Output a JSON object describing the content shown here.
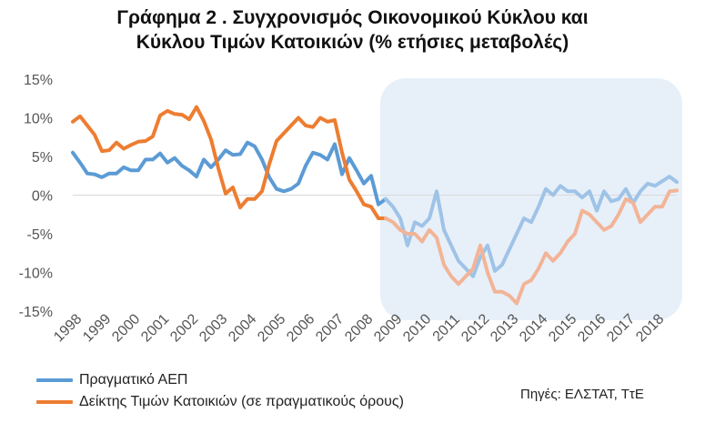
{
  "title_line1": "Γράφημα 2 . Συγχρονισμός Οικονομικού Κύκλου και",
  "title_line2": "Κύκλου Τιμών Κατοικιών (% ετήσιες μεταβολές)",
  "source": "Πηγές: ΕΛΣΤΑΤ, ΤτΕ",
  "colors": {
    "gdp": "#5b9bd5",
    "gdp_light": "#9fc3e7",
    "housing": "#ed7d31",
    "housing_light": "#f2b497",
    "highlight": "#e7f0f9"
  },
  "chart_data": {
    "type": "line",
    "title": "Γράφημα 2 . Συγχρονισμός Οικονομικού Κύκλου και Κύκλου Τιμών Κατοικιών (% ετήσιες μεταβολές)",
    "xlabel": "",
    "ylabel": "",
    "ylim": [
      -15,
      15
    ],
    "y_ticks": [
      "15%",
      "10%",
      "5%",
      "0%",
      "-5%",
      "-10%",
      "-15%"
    ],
    "y_tick_values": [
      15,
      10,
      5,
      0,
      -5,
      -10,
      -15
    ],
    "x_ticks": [
      "1998",
      "1999",
      "2000",
      "2001",
      "2002",
      "2003",
      "2004",
      "2005",
      "2006",
      "2007",
      "2008",
      "2009",
      "2010",
      "2011",
      "2012",
      "2013",
      "2014",
      "2015",
      "2016",
      "2017",
      "2018"
    ],
    "x_range": [
      1998.0,
      2018.75
    ],
    "highlight_period": {
      "from": 2008.75,
      "to": 2018.75
    },
    "grid": false,
    "legend_position": "bottom-left",
    "series": [
      {
        "name": "Πραγματικό ΑΕΠ",
        "color": "#5b9bd5",
        "light_after": 2008.75,
        "x": [
          1998.0,
          1998.25,
          1998.5,
          1998.75,
          1999.0,
          1999.25,
          1999.5,
          1999.75,
          2000.0,
          2000.25,
          2000.5,
          2000.75,
          2001.0,
          2001.25,
          2001.5,
          2001.75,
          2002.0,
          2002.25,
          2002.5,
          2002.75,
          2003.0,
          2003.25,
          2003.5,
          2003.75,
          2004.0,
          2004.25,
          2004.5,
          2004.75,
          2005.0,
          2005.25,
          2005.5,
          2005.75,
          2006.0,
          2006.25,
          2006.5,
          2006.75,
          2007.0,
          2007.25,
          2007.5,
          2007.75,
          2008.0,
          2008.25,
          2008.5,
          2008.75,
          2009.0,
          2009.25,
          2009.5,
          2009.75,
          2010.0,
          2010.25,
          2010.5,
          2010.75,
          2011.0,
          2011.25,
          2011.5,
          2011.75,
          2012.0,
          2012.25,
          2012.5,
          2012.75,
          2013.0,
          2013.25,
          2013.5,
          2013.75,
          2014.0,
          2014.25,
          2014.5,
          2014.75,
          2015.0,
          2015.25,
          2015.5,
          2015.75,
          2016.0,
          2016.25,
          2016.5,
          2016.75,
          2017.0,
          2017.25,
          2017.5,
          2017.75,
          2018.0,
          2018.25,
          2018.5,
          2018.75
        ],
        "values": [
          5.5,
          4.2,
          2.8,
          2.7,
          2.3,
          2.8,
          2.8,
          3.6,
          3.2,
          3.2,
          4.6,
          4.6,
          5.4,
          4.2,
          4.8,
          3.8,
          3.2,
          2.4,
          4.6,
          3.6,
          4.6,
          5.8,
          5.2,
          5.3,
          6.8,
          6.3,
          4.6,
          2.3,
          0.8,
          0.5,
          0.8,
          1.5,
          3.8,
          5.5,
          5.2,
          4.6,
          6.6,
          2.7,
          4.8,
          3.2,
          1.5,
          2.5,
          -1.2,
          -0.5,
          -1.5,
          -3.0,
          -6.5,
          -3.5,
          -4.0,
          -3.0,
          0.5,
          -4.5,
          -6.5,
          -8.5,
          -9.5,
          -10.5,
          -8.0,
          -6.5,
          -9.8,
          -9.0,
          -7.0,
          -5.0,
          -3.0,
          -3.5,
          -1.5,
          0.8,
          0.0,
          1.2,
          0.5,
          0.5,
          -0.3,
          0.5,
          -2.0,
          0.5,
          -0.8,
          -0.5,
          0.8,
          -1.0,
          0.5,
          1.5,
          1.2,
          1.8,
          2.4,
          1.7
        ]
      },
      {
        "name": "Δείκτης Τιμών Κατοικιών (σε πραγματικούς όρους)",
        "color": "#ed7d31",
        "light_after": 2008.75,
        "x": [
          1998.0,
          1998.25,
          1998.5,
          1998.75,
          1999.0,
          1999.25,
          1999.5,
          1999.75,
          2000.0,
          2000.25,
          2000.5,
          2000.75,
          2001.0,
          2001.25,
          2001.5,
          2001.75,
          2002.0,
          2002.25,
          2002.5,
          2002.75,
          2003.0,
          2003.25,
          2003.5,
          2003.75,
          2004.0,
          2004.25,
          2004.5,
          2004.75,
          2005.0,
          2005.25,
          2005.5,
          2005.75,
          2006.0,
          2006.25,
          2006.5,
          2006.75,
          2007.0,
          2007.25,
          2007.5,
          2007.75,
          2008.0,
          2008.25,
          2008.5,
          2008.75,
          2009.0,
          2009.25,
          2009.5,
          2009.75,
          2010.0,
          2010.25,
          2010.5,
          2010.75,
          2011.0,
          2011.25,
          2011.5,
          2011.75,
          2012.0,
          2012.25,
          2012.5,
          2012.75,
          2013.0,
          2013.25,
          2013.5,
          2013.75,
          2014.0,
          2014.25,
          2014.5,
          2014.75,
          2015.0,
          2015.25,
          2015.5,
          2015.75,
          2016.0,
          2016.25,
          2016.5,
          2016.75,
          2017.0,
          2017.25,
          2017.5,
          2017.75,
          2018.0,
          2018.25,
          2018.5,
          2018.75
        ],
        "values": [
          9.5,
          10.2,
          9.0,
          7.8,
          5.7,
          5.8,
          6.8,
          6.0,
          6.5,
          6.9,
          7.0,
          7.6,
          10.3,
          10.9,
          10.5,
          10.4,
          9.8,
          11.4,
          9.6,
          7.2,
          3.5,
          0.2,
          1.0,
          -1.6,
          -0.5,
          -0.5,
          0.5,
          4.0,
          7.0,
          8.0,
          9.0,
          10.0,
          9.0,
          8.8,
          10.0,
          9.5,
          9.7,
          5.5,
          2.0,
          0.5,
          -1.2,
          -1.5,
          -3.0,
          -3.0,
          -3.5,
          -4.5,
          -5.0,
          -5.0,
          -6.0,
          -4.5,
          -5.5,
          -9.0,
          -10.5,
          -11.5,
          -10.5,
          -9.5,
          -6.5,
          -10.0,
          -12.5,
          -12.5,
          -13.0,
          -14.0,
          -11.5,
          -11.0,
          -9.5,
          -7.5,
          -8.5,
          -7.5,
          -6.0,
          -5.0,
          -2.0,
          -2.5,
          -3.5,
          -4.5,
          -4.0,
          -2.5,
          -0.5,
          -1.0,
          -3.5,
          -2.5,
          -1.5,
          -1.5,
          0.5,
          0.6
        ]
      }
    ]
  }
}
